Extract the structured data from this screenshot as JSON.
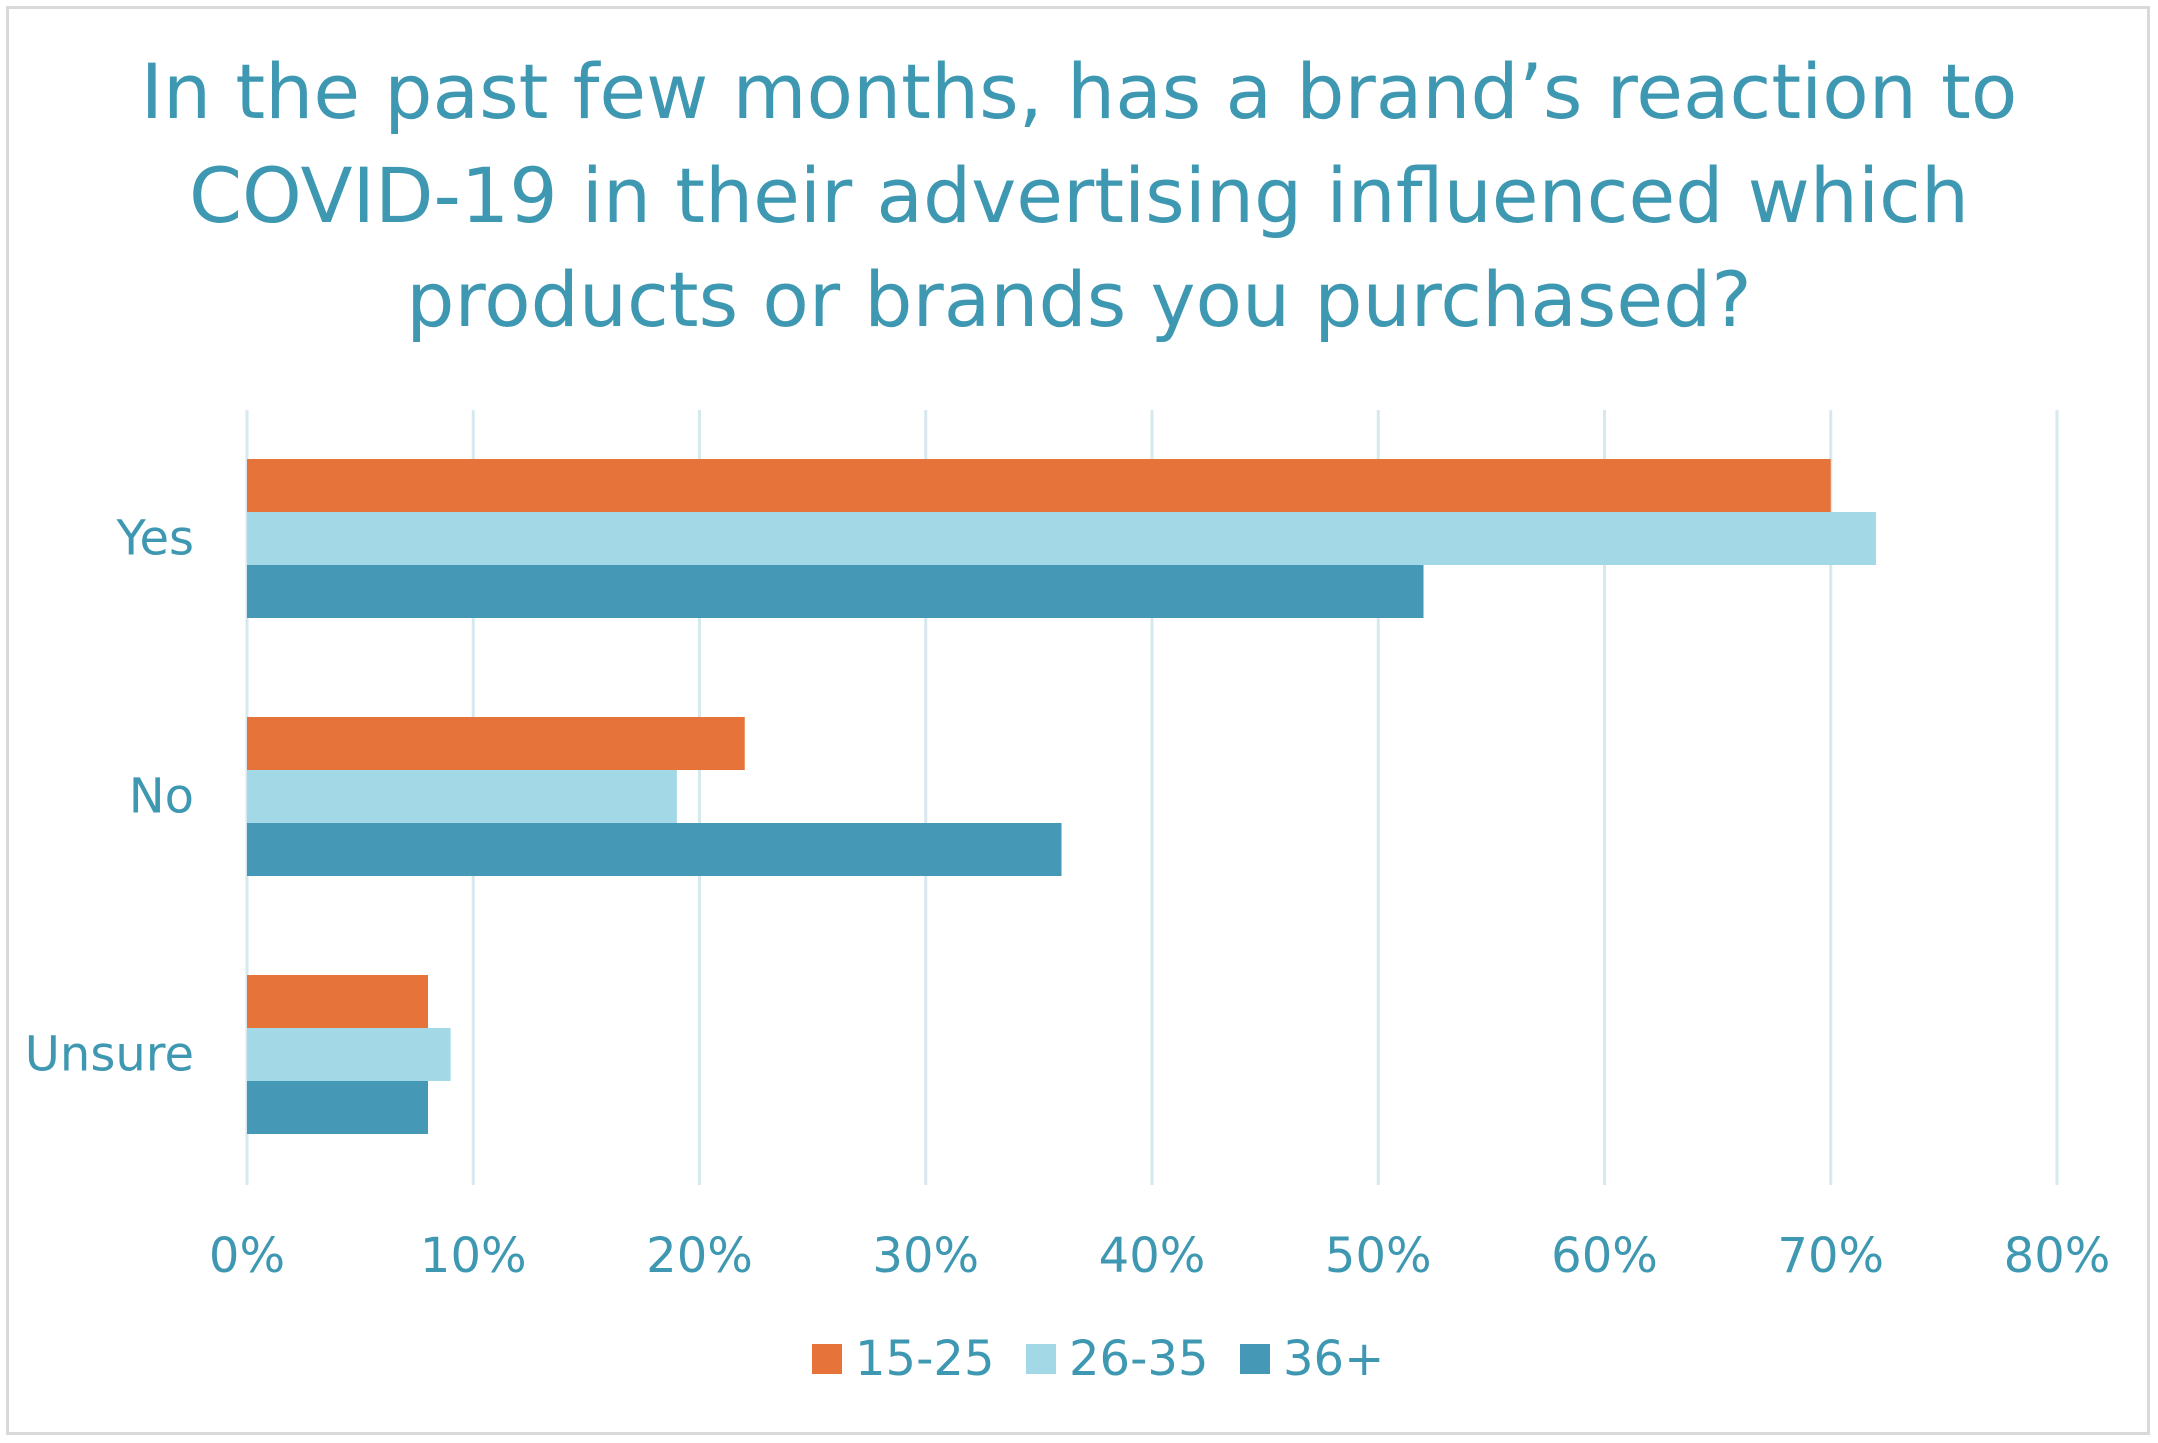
{
  "colors": {
    "series_15_25": "#e5733a",
    "series_26_35": "#a3d9e6",
    "series_36_plus": "#4599b6",
    "text": "#3f98b2",
    "grid": "#d6e9ef",
    "frame": "#d9d9d9"
  },
  "chart_data": {
    "type": "bar",
    "orientation": "horizontal",
    "title": "In the past few months, has a brand’s reaction to COVID-19 in their advertising influenced which products or brands you purchased?",
    "title_lines": [
      "In the past few months, has a brand’s reaction to",
      "COVID-19 in their advertising influenced which",
      "products or brands you purchased?"
    ],
    "categories": [
      "Yes",
      "No",
      "Unsure"
    ],
    "series": [
      {
        "name": "15-25",
        "values": [
          70,
          22,
          8
        ]
      },
      {
        "name": "26-35",
        "values": [
          72,
          19,
          9
        ]
      },
      {
        "name": "36+",
        "values": [
          52,
          36,
          8
        ]
      }
    ],
    "xlim": [
      0,
      80
    ],
    "x_ticks": [
      0,
      10,
      20,
      30,
      40,
      50,
      60,
      70,
      80
    ],
    "x_tick_labels": [
      "0%",
      "10%",
      "20%",
      "30%",
      "40%",
      "50%",
      "60%",
      "70%",
      "80%"
    ],
    "xlabel": "",
    "ylabel": "",
    "grid": true,
    "legend_position": "bottom"
  }
}
